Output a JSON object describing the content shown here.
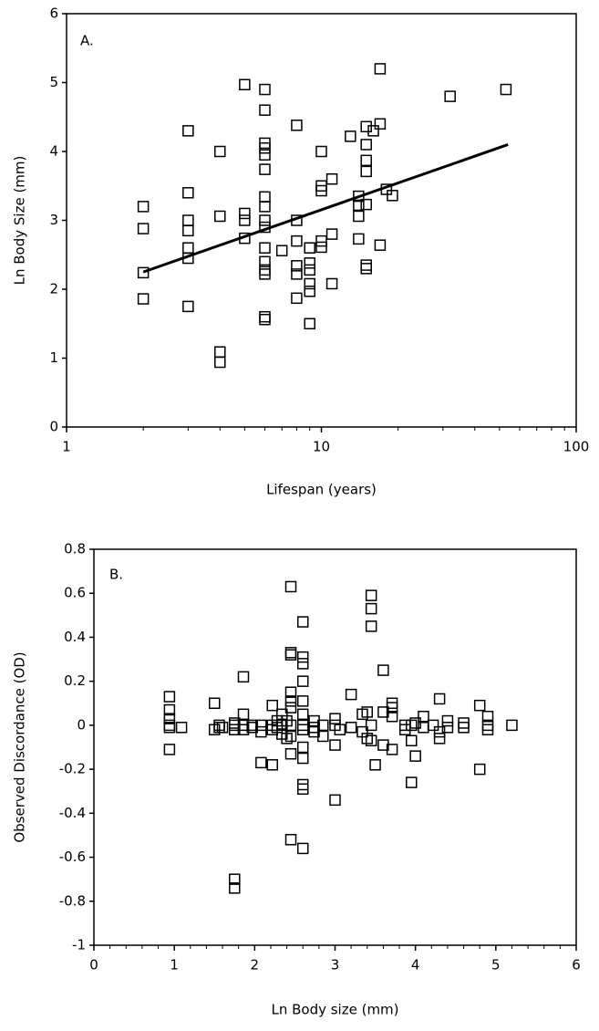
{
  "chart_data": [
    {
      "type": "scatter",
      "annotation": "A.",
      "x_label": "Lifespan (years)",
      "y_label": "Ln Body Size (mm)",
      "xscale": "log",
      "xlim": [
        1,
        100
      ],
      "xticks": [
        1,
        10,
        100
      ],
      "xminorticks": [
        2,
        3,
        4,
        5,
        6,
        7,
        8,
        9,
        20,
        30,
        40,
        50,
        60,
        70,
        80,
        90
      ],
      "ylim": [
        0,
        6
      ],
      "yticks": [
        0,
        1,
        2,
        3,
        4,
        5,
        6
      ],
      "color": "#000000",
      "x": [
        2,
        2,
        2,
        2,
        3,
        3,
        3,
        3,
        3,
        3,
        3,
        4,
        4,
        4,
        4,
        5,
        5,
        5,
        5,
        6,
        6,
        6,
        6,
        6,
        6,
        6,
        6,
        6,
        6,
        6,
        6,
        6,
        6,
        6,
        6,
        7,
        8,
        8,
        8,
        8,
        8,
        8,
        9,
        9,
        9,
        9,
        9,
        9,
        10,
        10,
        10,
        10,
        10,
        11,
        11,
        11,
        13,
        14,
        14,
        14,
        14,
        15,
        15,
        15,
        15,
        15,
        15,
        15,
        16,
        17,
        17,
        17,
        18,
        19,
        32,
        53
      ],
      "values": [
        3.2,
        2.88,
        2.24,
        1.86,
        4.3,
        3.4,
        3.0,
        2.85,
        2.6,
        2.45,
        1.75,
        4.0,
        3.06,
        1.09,
        0.94,
        4.97,
        3.1,
        3.0,
        2.74,
        4.9,
        4.6,
        4.12,
        4.05,
        3.95,
        3.74,
        3.34,
        3.2,
        3.0,
        2.9,
        2.6,
        2.4,
        2.28,
        2.22,
        1.6,
        1.56,
        2.56,
        4.38,
        3.0,
        2.7,
        2.34,
        2.22,
        1.87,
        2.6,
        2.38,
        2.28,
        2.08,
        1.97,
        1.5,
        4.0,
        3.5,
        3.43,
        2.7,
        2.61,
        3.6,
        2.8,
        2.08,
        4.22,
        3.35,
        3.22,
        3.06,
        2.73,
        4.36,
        4.1,
        3.87,
        3.71,
        3.23,
        2.35,
        2.3,
        4.3,
        5.2,
        4.4,
        2.64,
        3.45,
        3.36,
        4.8,
        4.9
      ],
      "trendline": {
        "x": [
          2,
          54
        ],
        "values": [
          2.25,
          4.1
        ]
      }
    },
    {
      "type": "scatter",
      "annotation": "B.",
      "x_label": "Ln Body size (mm)",
      "y_label": "Observed Discordance (OD)",
      "xscale": "linear",
      "xlim": [
        0,
        6
      ],
      "xticks": [
        0,
        1,
        2,
        3,
        4,
        5,
        6
      ],
      "xminorticks": [
        0.2,
        0.4,
        0.6,
        0.8,
        1.2,
        1.4,
        1.6,
        1.8,
        2.2,
        2.4,
        2.6,
        2.8,
        3.2,
        3.4,
        3.6,
        3.8,
        4.2,
        4.4,
        4.6,
        4.8,
        5.2,
        5.4,
        5.6,
        5.8
      ],
      "ylim": [
        -1,
        0.8
      ],
      "yticks": [
        -1,
        -0.8,
        -0.6,
        -0.4,
        -0.2,
        0,
        0.2,
        0.4,
        0.6,
        0.8
      ],
      "color": "#000000",
      "x": [
        0.94,
        0.94,
        0.94,
        0.94,
        0.94,
        0.94,
        1.09,
        1.5,
        1.5,
        1.56,
        1.56,
        1.6,
        1.75,
        1.75,
        1.75,
        1.75,
        1.75,
        1.86,
        1.86,
        1.86,
        1.86,
        1.97,
        1.97,
        2.08,
        2.08,
        2.08,
        2.22,
        2.22,
        2.22,
        2.22,
        2.28,
        2.28,
        2.34,
        2.34,
        2.34,
        2.4,
        2.4,
        2.45,
        2.45,
        2.45,
        2.45,
        2.45,
        2.45,
        2.45,
        2.45,
        2.45,
        2.45,
        2.6,
        2.6,
        2.6,
        2.6,
        2.6,
        2.6,
        2.6,
        2.6,
        2.6,
        2.6,
        2.6,
        2.6,
        2.6,
        2.74,
        2.74,
        2.74,
        2.85,
        2.85,
        3.0,
        3.0,
        3.0,
        3.0,
        3.06,
        3.2,
        3.2,
        3.34,
        3.34,
        3.4,
        3.4,
        3.45,
        3.45,
        3.45,
        3.45,
        3.45,
        3.5,
        3.6,
        3.6,
        3.6,
        3.71,
        3.71,
        3.71,
        3.71,
        3.87,
        3.87,
        3.95,
        3.95,
        3.95,
        4.0,
        4.0,
        4.1,
        4.1,
        4.22,
        4.3,
        4.3,
        4.3,
        4.4,
        4.4,
        4.6,
        4.6,
        4.8,
        4.8,
        4.9,
        4.9,
        4.9,
        5.2
      ],
      "values": [
        0.13,
        0.07,
        0.03,
        0.0,
        -0.01,
        -0.11,
        -0.01,
        0.1,
        -0.02,
        0.0,
        -0.01,
        -0.01,
        0.0,
        -0.02,
        -0.7,
        -0.74,
        0.01,
        0.22,
        0.05,
        0.0,
        -0.02,
        -0.01,
        0.0,
        -0.17,
        -0.03,
        0.0,
        -0.18,
        0.09,
        0.0,
        -0.02,
        0.02,
        -0.01,
        0.05,
        0.0,
        -0.04,
        0.02,
        -0.06,
        0.63,
        0.33,
        0.32,
        0.15,
        0.11,
        0.08,
        -0.05,
        -0.13,
        -0.52,
        0.0,
        0.47,
        0.31,
        0.28,
        0.2,
        0.11,
        0.05,
        0.0,
        -0.02,
        -0.1,
        -0.15,
        -0.27,
        -0.29,
        -0.56,
        0.02,
        -0.01,
        -0.03,
        0.0,
        -0.05,
        -0.09,
        -0.34,
        0.03,
        0.0,
        -0.02,
        0.14,
        -0.01,
        0.05,
        -0.03,
        0.06,
        -0.06,
        0.59,
        0.53,
        0.45,
        -0.07,
        0.0,
        -0.18,
        0.25,
        0.06,
        -0.09,
        -0.11,
        0.1,
        0.08,
        0.04,
        -0.02,
        0.0,
        -0.26,
        -0.07,
        0.0,
        -0.14,
        0.01,
        0.04,
        -0.01,
        0.0,
        0.12,
        -0.03,
        -0.06,
        0.02,
        -0.01,
        0.01,
        -0.01,
        0.09,
        -0.2,
        0.04,
        -0.02,
        0.0,
        0.0
      ]
    }
  ]
}
